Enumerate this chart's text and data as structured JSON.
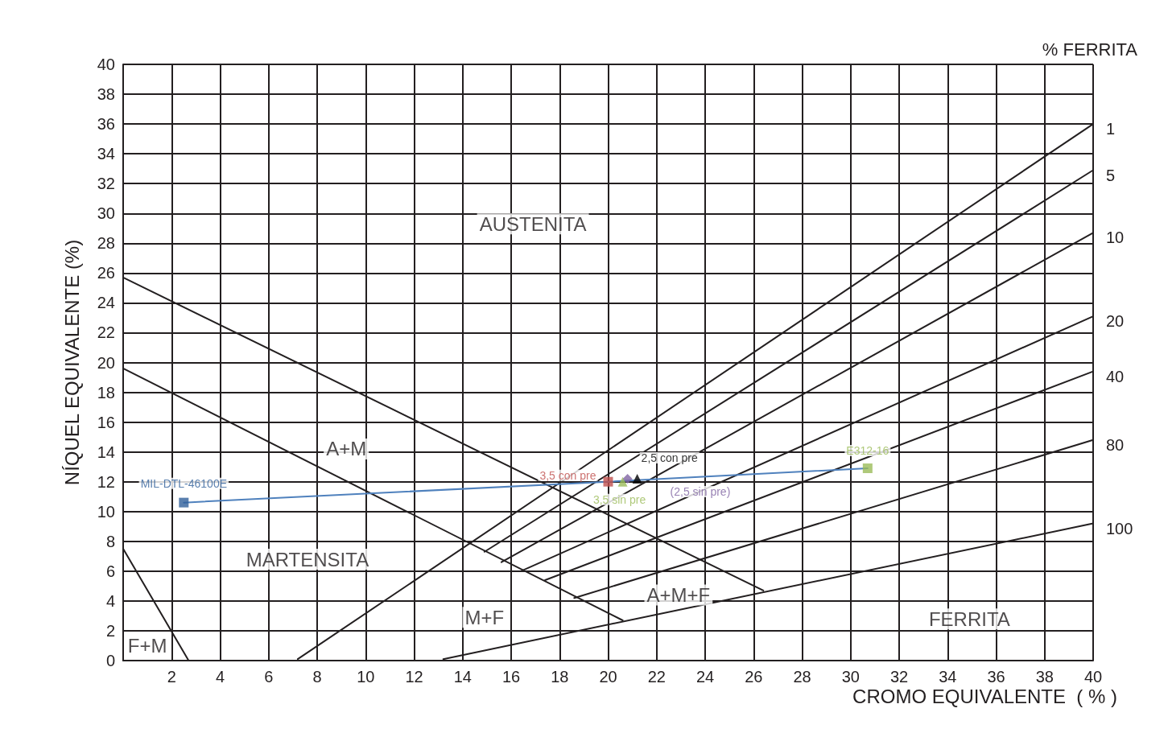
{
  "chart_data": {
    "type": "line",
    "xlabel": "CROMO EQUIVALENTE  ( % )",
    "ylabel": "NÍQUEL EQUIVALENTE (%)",
    "xlim": [
      0,
      40
    ],
    "ylim": [
      0,
      40
    ],
    "xticks": [
      2,
      4,
      6,
      8,
      10,
      12,
      14,
      16,
      18,
      20,
      22,
      24,
      26,
      28,
      30,
      32,
      34,
      36,
      38,
      40
    ],
    "yticks": [
      0,
      2,
      4,
      6,
      8,
      10,
      12,
      14,
      16,
      18,
      20,
      22,
      24,
      26,
      28,
      30,
      32,
      34,
      36,
      38,
      40
    ],
    "grid": true,
    "legend": false,
    "series": [
      {
        "color": "#231f20",
        "marker": "none",
        "x": [
          0,
          2.7
        ],
        "values": [
          7.5,
          0
        ]
      },
      {
        "color": "#231f20",
        "marker": "none",
        "x": [
          0,
          20.6
        ],
        "values": [
          19.6,
          2.7
        ]
      },
      {
        "color": "#231f20",
        "marker": "none",
        "x": [
          0,
          26.4
        ],
        "values": [
          25.7,
          4.7
        ]
      },
      {
        "name": "1",
        "color": "#231f20",
        "marker": "none",
        "x": [
          7.2,
          40
        ],
        "values": [
          0.1,
          36
        ]
      },
      {
        "name": "5",
        "color": "#231f20",
        "marker": "none",
        "x": [
          14.9,
          40
        ],
        "values": [
          7.3,
          32.9
        ]
      },
      {
        "name": "10",
        "color": "#231f20",
        "marker": "none",
        "x": [
          15.6,
          40
        ],
        "values": [
          6.6,
          28.7
        ]
      },
      {
        "name": "20",
        "color": "#231f20",
        "marker": "none",
        "x": [
          16.4,
          40
        ],
        "values": [
          6.0,
          23.1
        ]
      },
      {
        "name": "40",
        "color": "#231f20",
        "marker": "none",
        "x": [
          17.4,
          40
        ],
        "values": [
          5.4,
          19.4
        ]
      },
      {
        "name": "80",
        "color": "#231f20",
        "marker": "none",
        "x": [
          18.6,
          40
        ],
        "values": [
          4.2,
          14.8
        ]
      },
      {
        "name": "100",
        "color": "#231f20",
        "marker": "none",
        "x": [
          13.2,
          40
        ],
        "values": [
          0.1,
          9.2
        ]
      },
      {
        "color": "#4f81bd",
        "marker": "none",
        "x": [
          2.5,
          20.0
        ],
        "values": [
          10.6,
          12.0
        ]
      },
      {
        "color": "#4f81bd",
        "marker": "none",
        "x": [
          20.0,
          30.7
        ],
        "values": [
          12.0,
          12.9
        ]
      },
      {
        "type": "scatter",
        "name": "MIL-DTL-46100E",
        "color": "#2f5f9a",
        "marker": "square",
        "x": [
          2.5
        ],
        "values": [
          10.6
        ]
      },
      {
        "type": "scatter",
        "name": "3,5 con pre",
        "color": "#c0504d",
        "marker": "square",
        "x": [
          20.0
        ],
        "values": [
          12.0
        ]
      },
      {
        "type": "scatter",
        "name": "3,5 sin pre",
        "color": "#9bbb59",
        "marker": "triangle",
        "x": [
          20.6
        ],
        "values": [
          12.0
        ]
      },
      {
        "type": "scatter",
        "name": "(2,5 sin pre)",
        "color": "#8064a2",
        "marker": "diamond",
        "x": [
          20.8
        ],
        "values": [
          12.2
        ]
      },
      {
        "type": "scatter",
        "name": "2,5 con pre",
        "color": "#000000",
        "marker": "triangle",
        "x": [
          21.2
        ],
        "values": [
          12.2
        ]
      },
      {
        "type": "scatter",
        "name": "E312-16",
        "color": "#9bbb59",
        "marker": "square",
        "x": [
          30.7
        ],
        "values": [
          12.9
        ]
      }
    ],
    "annotations": [
      "% FERRITA",
      "AUSTENITA",
      "A+M",
      "MARTENSITA",
      "M+F",
      "A+M+F",
      "FERRITA",
      "F+M"
    ]
  }
}
